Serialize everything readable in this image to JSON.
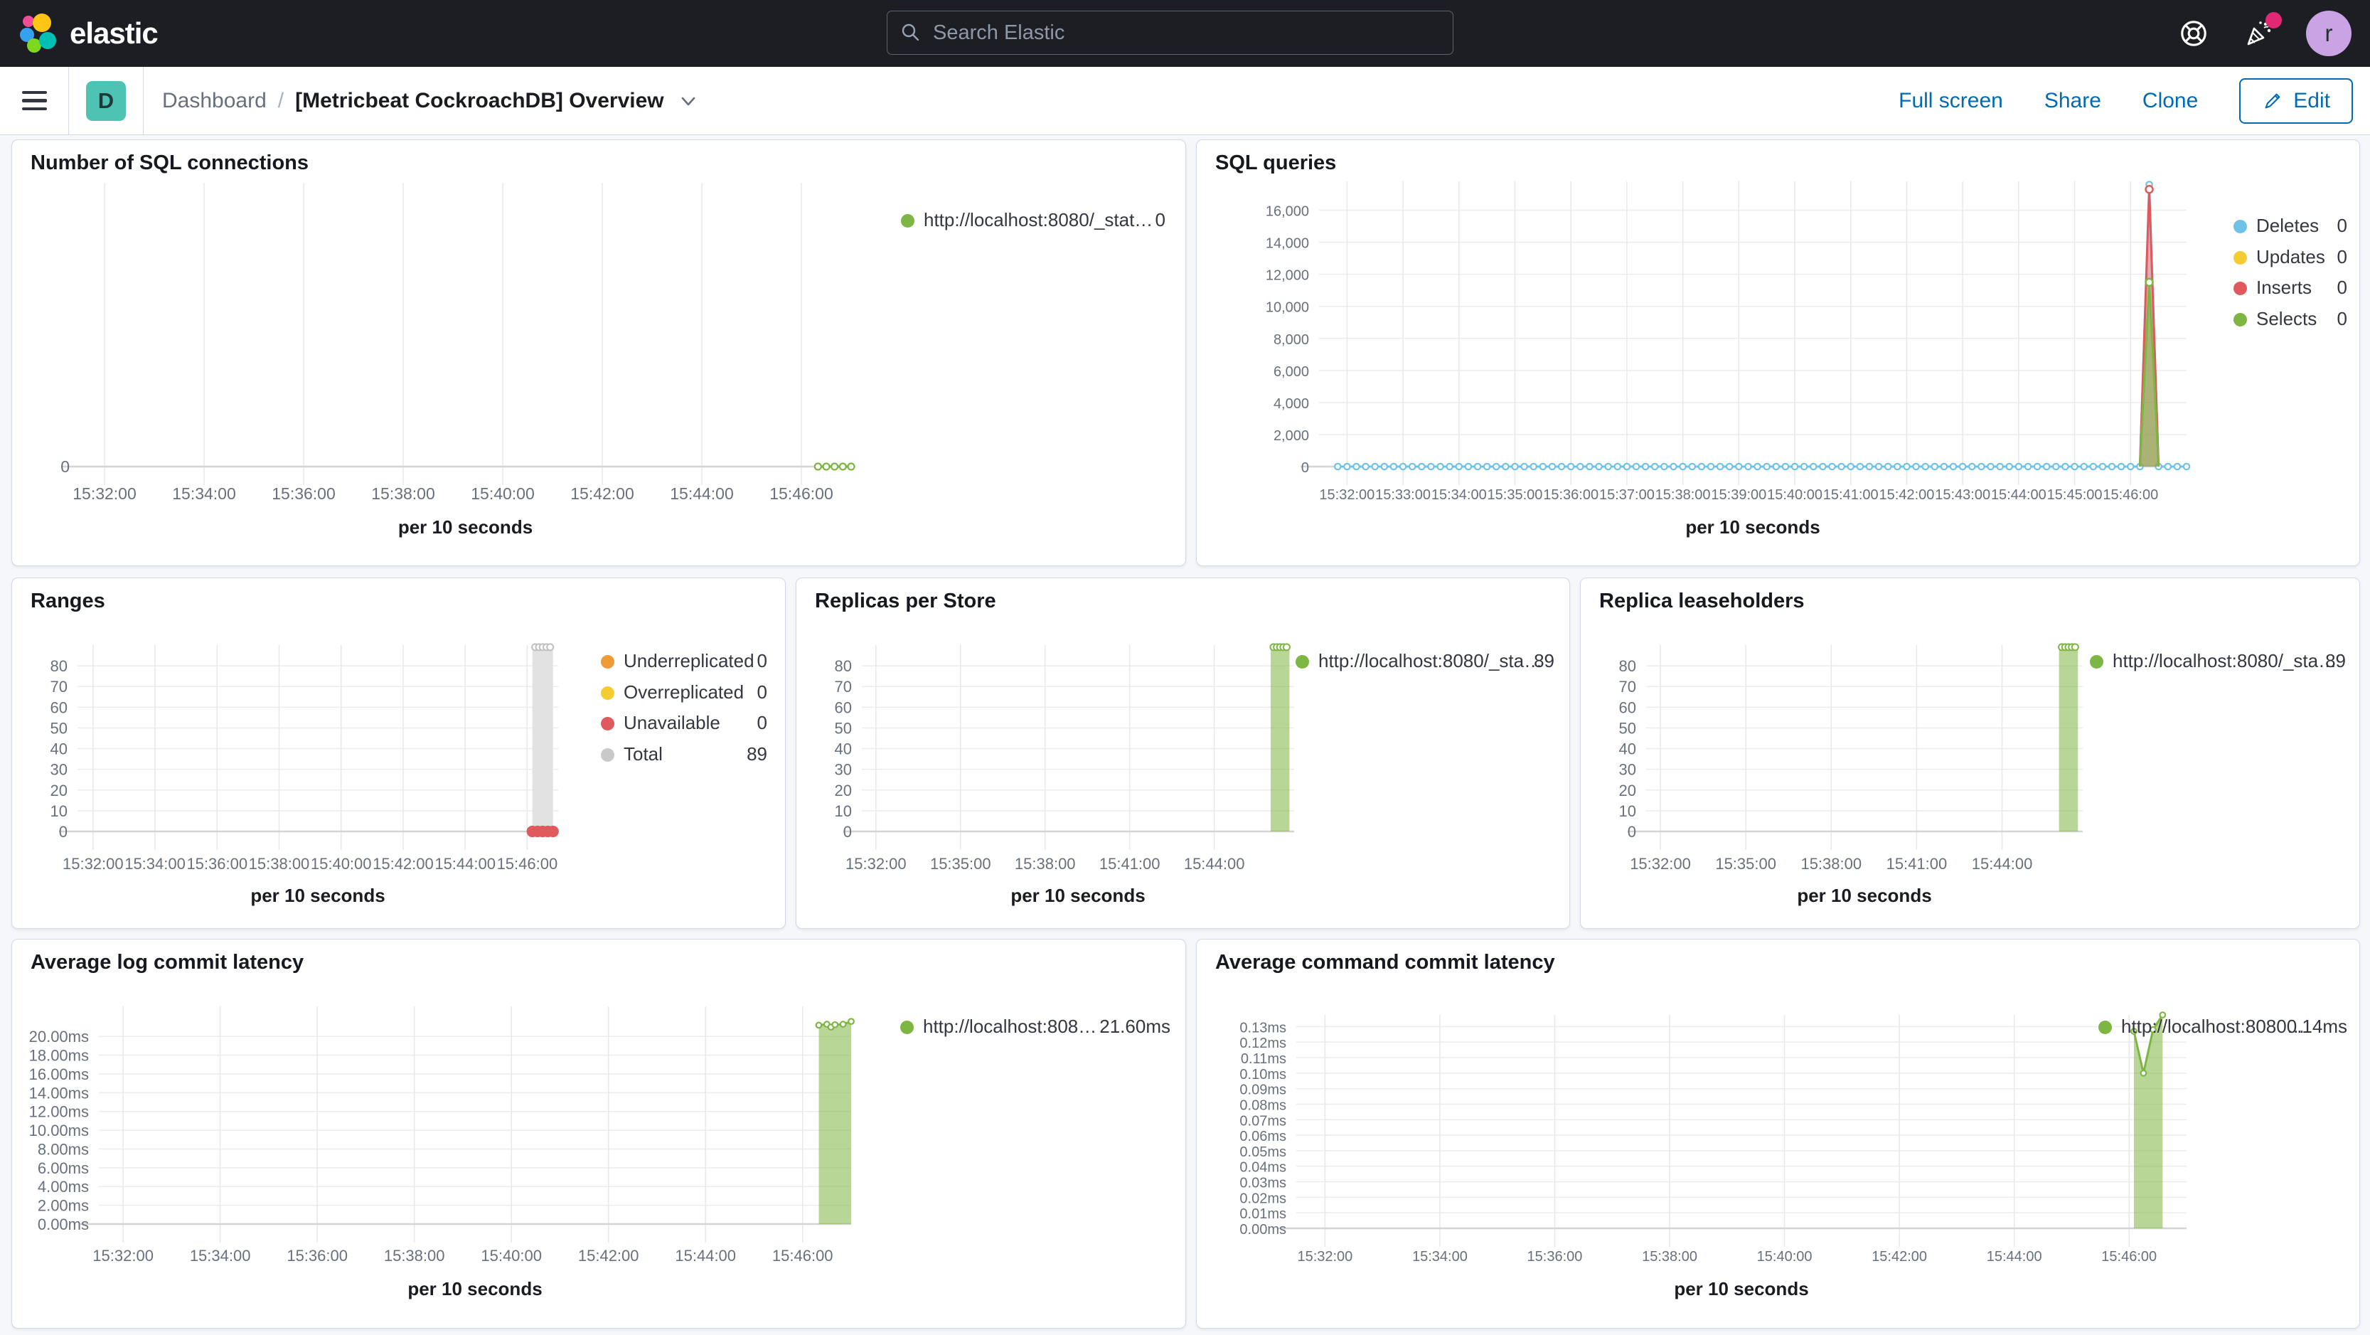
{
  "header": {
    "brand": "elastic",
    "search_placeholder": "Search Elastic",
    "avatar_initial": "r"
  },
  "nav": {
    "space_badge": "D",
    "breadcrumb": {
      "root": "Dashboard",
      "separator": "/",
      "current": "[Metricbeat CockroachDB] Overview"
    },
    "actions": [
      "Full screen",
      "Share",
      "Clone"
    ],
    "edit_label": "Edit"
  },
  "colors": {
    "header_bg": "#1D1E24",
    "accent_blue": "#006BB4",
    "space_badge_teal": "#4EC3B4",
    "notification_pink": "#E02874",
    "series_green": "#7DB642",
    "series_blue": "#6EC2E8",
    "series_yellow": "#F2CC31",
    "series_red": "#E0595C",
    "series_orange": "#EF9A35",
    "series_gray": "#C9C9C9"
  },
  "panels": [
    {
      "title": "Number of SQL connections",
      "legend": [
        {
          "label": "http://localhost:8080/_stat…",
          "value": "0",
          "color": "#7DB642"
        }
      ],
      "chart_data": {
        "type": "line",
        "x_label": "per 10 seconds",
        "x_domain": [
          "15:31:30",
          "15:47:00"
        ],
        "x_ticks": [
          "15:32:00",
          "15:34:00",
          "15:36:00",
          "15:38:00",
          "15:40:00",
          "15:42:00",
          "15:44:00",
          "15:46:00"
        ],
        "y_domain": [
          0,
          1
        ],
        "y_ticks": [
          {
            "v": 0,
            "label": "0"
          }
        ],
        "series": [
          {
            "name": "http://localhost:8080/_stat…",
            "color": "#7DB642",
            "type": "dotline",
            "from": "15:46:20",
            "to": "15:47:00",
            "step_sec": 10,
            "value": 0,
            "markers": "open",
            "marker_size": 4.5,
            "line_width": 3.5
          }
        ]
      }
    },
    {
      "title": "SQL queries",
      "legend": [
        {
          "label": "Deletes",
          "value": "0",
          "color": "#6EC2E8"
        },
        {
          "label": "Updates",
          "value": "0",
          "color": "#F2CC31"
        },
        {
          "label": "Inserts",
          "value": "0",
          "color": "#E0595C"
        },
        {
          "label": "Selects",
          "value": "0",
          "color": "#7DB642"
        }
      ],
      "chart_data": {
        "type": "line",
        "x_label": "per 10 seconds",
        "x_domain": [
          "15:31:30",
          "15:47:00"
        ],
        "x_ticks": [
          "15:32:00",
          "15:33:00",
          "15:34:00",
          "15:35:00",
          "15:36:00",
          "15:37:00",
          "15:38:00",
          "15:39:00",
          "15:40:00",
          "15:41:00",
          "15:42:00",
          "15:43:00",
          "15:44:00",
          "15:45:00",
          "15:46:00"
        ],
        "y_domain": [
          0,
          17800
        ],
        "y_ticks": [
          {
            "v": 0,
            "label": "0"
          },
          {
            "v": 2000,
            "label": "2,000"
          },
          {
            "v": 4000,
            "label": "4,000"
          },
          {
            "v": 6000,
            "label": "6,000"
          },
          {
            "v": 8000,
            "label": "8,000"
          },
          {
            "v": 10000,
            "label": "10,000"
          },
          {
            "v": 12000,
            "label": "12,000"
          },
          {
            "v": 14000,
            "label": "14,000"
          },
          {
            "v": 16000,
            "label": "16,000"
          }
        ],
        "series": [
          {
            "name": "Deletes",
            "color": "#6EC2E8",
            "type": "dotline",
            "from": "15:31:50",
            "to": "15:47:00",
            "step_sec": 10,
            "value": 0,
            "spike": {
              "t": "15:46:20",
              "v": 17600
            },
            "markers": "open",
            "marker_size": 4.2,
            "line_width": 3,
            "fill": true,
            "fill_opacity": 0.18
          },
          {
            "name": "Inserts",
            "color": "#E0595C",
            "type": "line",
            "points": [
              [
                "15:46:10",
                0
              ],
              [
                "15:46:20",
                17300
              ],
              [
                "15:46:30",
                0
              ]
            ],
            "fill": true,
            "fill_opacity": 0.45,
            "line_width": 3,
            "marker_points": [
              [
                "15:46:20",
                17300
              ]
            ]
          },
          {
            "name": "Selects",
            "color": "#7DB642",
            "type": "line",
            "points": [
              [
                "15:46:10",
                0
              ],
              [
                "15:46:20",
                11500
              ],
              [
                "15:46:30",
                0
              ]
            ],
            "fill": true,
            "fill_opacity": 0.55,
            "line_width": 3,
            "marker_points": [
              [
                "15:46:20",
                11500
              ]
            ]
          }
        ]
      }
    },
    {
      "title": "Ranges",
      "legend": [
        {
          "label": "Underreplicated",
          "value": "0",
          "color": "#EF9A35"
        },
        {
          "label": "Overreplicated",
          "value": "0",
          "color": "#F2CC31"
        },
        {
          "label": "Unavailable",
          "value": "0",
          "color": "#E0595C"
        },
        {
          "label": "Total",
          "value": "89",
          "color": "#C9C9C9"
        }
      ],
      "chart_data": {
        "type": "bar",
        "x_label": "per 10 seconds",
        "x_domain": [
          "15:31:30",
          "15:47:00"
        ],
        "x_ticks": [
          "15:32:00",
          "15:34:00",
          "15:36:00",
          "15:38:00",
          "15:40:00",
          "15:42:00",
          "15:44:00",
          "15:46:00"
        ],
        "y_domain": [
          0,
          90
        ],
        "y_ticks": [
          {
            "v": 0,
            "label": "0"
          },
          {
            "v": 10,
            "label": "10"
          },
          {
            "v": 20,
            "label": "20"
          },
          {
            "v": 30,
            "label": "30"
          },
          {
            "v": 40,
            "label": "40"
          },
          {
            "v": 50,
            "label": "50"
          },
          {
            "v": 60,
            "label": "60"
          },
          {
            "v": 70,
            "label": "70"
          },
          {
            "v": 80,
            "label": "80"
          }
        ],
        "series": [
          {
            "name": "Total",
            "color": "#E2E2E2",
            "type": "bar",
            "from": "15:46:10",
            "to": "15:46:50",
            "value": 89,
            "fill_opacity": 1,
            "top_markers": 5,
            "marker_color": "#BFBFBF"
          },
          {
            "name": "Unavailable",
            "color": "#E0595C",
            "type": "dotline",
            "from": "15:46:10",
            "to": "15:46:50",
            "step_sec": 10,
            "value": 0,
            "markers": "filled",
            "marker_size": 7,
            "line_width": 6
          }
        ]
      }
    },
    {
      "title": "Replicas per Store",
      "legend": [
        {
          "label": "http://localhost:8080/_sta…",
          "value": "89",
          "color": "#7DB642"
        }
      ],
      "chart_data": {
        "type": "bar",
        "x_label": "per 10 seconds",
        "x_domain": [
          "15:31:30",
          "15:46:50"
        ],
        "x_ticks": [
          "15:32:00",
          "15:35:00",
          "15:38:00",
          "15:41:00",
          "15:44:00"
        ],
        "y_domain": [
          0,
          90
        ],
        "y_ticks": [
          {
            "v": 0,
            "label": "0"
          },
          {
            "v": 10,
            "label": "10"
          },
          {
            "v": 20,
            "label": "20"
          },
          {
            "v": 30,
            "label": "30"
          },
          {
            "v": 40,
            "label": "40"
          },
          {
            "v": 50,
            "label": "50"
          },
          {
            "v": 60,
            "label": "60"
          },
          {
            "v": 70,
            "label": "70"
          },
          {
            "v": 80,
            "label": "80"
          }
        ],
        "series": [
          {
            "name": "http://localhost:8080/_sta…",
            "color": "#7DB642",
            "type": "bar",
            "from": "15:46:00",
            "to": "15:46:40",
            "value": 89,
            "fill_opacity": 0.55,
            "top_markers": 5,
            "marker_color": "#7DB642"
          }
        ]
      }
    },
    {
      "title": "Replica leaseholders",
      "legend": [
        {
          "label": "http://localhost:8080/_sta…",
          "value": "89",
          "color": "#7DB642"
        }
      ],
      "chart_data": {
        "type": "bar",
        "x_label": "per 10 seconds",
        "x_domain": [
          "15:31:30",
          "15:46:50"
        ],
        "x_ticks": [
          "15:32:00",
          "15:35:00",
          "15:38:00",
          "15:41:00",
          "15:44:00"
        ],
        "y_domain": [
          0,
          90
        ],
        "y_ticks": [
          {
            "v": 0,
            "label": "0"
          },
          {
            "v": 10,
            "label": "10"
          },
          {
            "v": 20,
            "label": "20"
          },
          {
            "v": 30,
            "label": "30"
          },
          {
            "v": 40,
            "label": "40"
          },
          {
            "v": 50,
            "label": "50"
          },
          {
            "v": 60,
            "label": "60"
          },
          {
            "v": 70,
            "label": "70"
          },
          {
            "v": 80,
            "label": "80"
          }
        ],
        "series": [
          {
            "name": "http://localhost:8080/_sta…",
            "color": "#7DB642",
            "type": "bar",
            "from": "15:46:00",
            "to": "15:46:40",
            "value": 89,
            "fill_opacity": 0.55,
            "top_markers": 5,
            "marker_color": "#7DB642"
          }
        ]
      }
    },
    {
      "title": "Average log commit latency",
      "legend": [
        {
          "label": "http://localhost:808…",
          "value": "21.60ms",
          "color": "#7DB642"
        }
      ],
      "chart_data": {
        "type": "area",
        "x_label": "per 10 seconds",
        "x_domain": [
          "15:31:30",
          "15:47:00"
        ],
        "x_ticks": [
          "15:32:00",
          "15:34:00",
          "15:36:00",
          "15:38:00",
          "15:40:00",
          "15:42:00",
          "15:44:00",
          "15:46:00"
        ],
        "y_domain": [
          0,
          23.2
        ],
        "y_ticks": [
          {
            "v": 0,
            "label": "0.00ms"
          },
          {
            "v": 2,
            "label": "2.00ms"
          },
          {
            "v": 4,
            "label": "4.00ms"
          },
          {
            "v": 6,
            "label": "6.00ms"
          },
          {
            "v": 8,
            "label": "8.00ms"
          },
          {
            "v": 10,
            "label": "10.00ms"
          },
          {
            "v": 12,
            "label": "12.00ms"
          },
          {
            "v": 14,
            "label": "14.00ms"
          },
          {
            "v": 16,
            "label": "16.00ms"
          },
          {
            "v": 18,
            "label": "18.00ms"
          },
          {
            "v": 20,
            "label": "20.00ms"
          }
        ],
        "series": [
          {
            "name": "http://localhost:808…",
            "color": "#7DB642",
            "type": "line",
            "points": [
              [
                "15:46:20",
                21.2
              ],
              [
                "15:46:30",
                21.3
              ],
              [
                "15:46:35",
                21.0
              ],
              [
                "15:46:40",
                21.25
              ],
              [
                "15:46:50",
                21.3
              ],
              [
                "15:47:00",
                21.6
              ]
            ],
            "fill": true,
            "fill_opacity": 0.55,
            "markers": "open",
            "marker_size": 3.8,
            "line_width": 3
          }
        ]
      }
    },
    {
      "title": "Average command commit latency",
      "legend": [
        {
          "label": "http://localhost:8080…",
          "value": "0.14ms",
          "color": "#7DB642"
        }
      ],
      "chart_data": {
        "type": "area",
        "x_label": "per 10 seconds",
        "x_domain": [
          "15:31:30",
          "15:47:00"
        ],
        "x_ticks": [
          "15:32:00",
          "15:34:00",
          "15:36:00",
          "15:38:00",
          "15:40:00",
          "15:42:00",
          "15:44:00",
          "15:46:00"
        ],
        "y_domain": [
          0,
          0.1375
        ],
        "y_ticks": [
          {
            "v": 0,
            "label": "0.00ms"
          },
          {
            "v": 0.01,
            "label": "0.01ms"
          },
          {
            "v": 0.02,
            "label": "0.02ms"
          },
          {
            "v": 0.03,
            "label": "0.03ms"
          },
          {
            "v": 0.04,
            "label": "0.04ms"
          },
          {
            "v": 0.05,
            "label": "0.05ms"
          },
          {
            "v": 0.06,
            "label": "0.06ms"
          },
          {
            "v": 0.07,
            "label": "0.07ms"
          },
          {
            "v": 0.08,
            "label": "0.08ms"
          },
          {
            "v": 0.09,
            "label": "0.09ms"
          },
          {
            "v": 0.1,
            "label": "0.10ms"
          },
          {
            "v": 0.11,
            "label": "0.11ms"
          },
          {
            "v": 0.12,
            "label": "0.12ms"
          },
          {
            "v": 0.13,
            "label": "0.13ms"
          }
        ],
        "series": [
          {
            "name": "http://localhost:8080…",
            "color": "#7DB642",
            "type": "line",
            "points": [
              [
                "15:46:05",
                0.127
              ],
              [
                "15:46:15",
                0.1
              ],
              [
                "15:46:25",
                0.128
              ],
              [
                "15:46:35",
                0.1375
              ]
            ],
            "fill": true,
            "fill_opacity": 0.55,
            "markers": "open",
            "marker_size": 3.8,
            "line_width": 3
          }
        ]
      }
    }
  ]
}
